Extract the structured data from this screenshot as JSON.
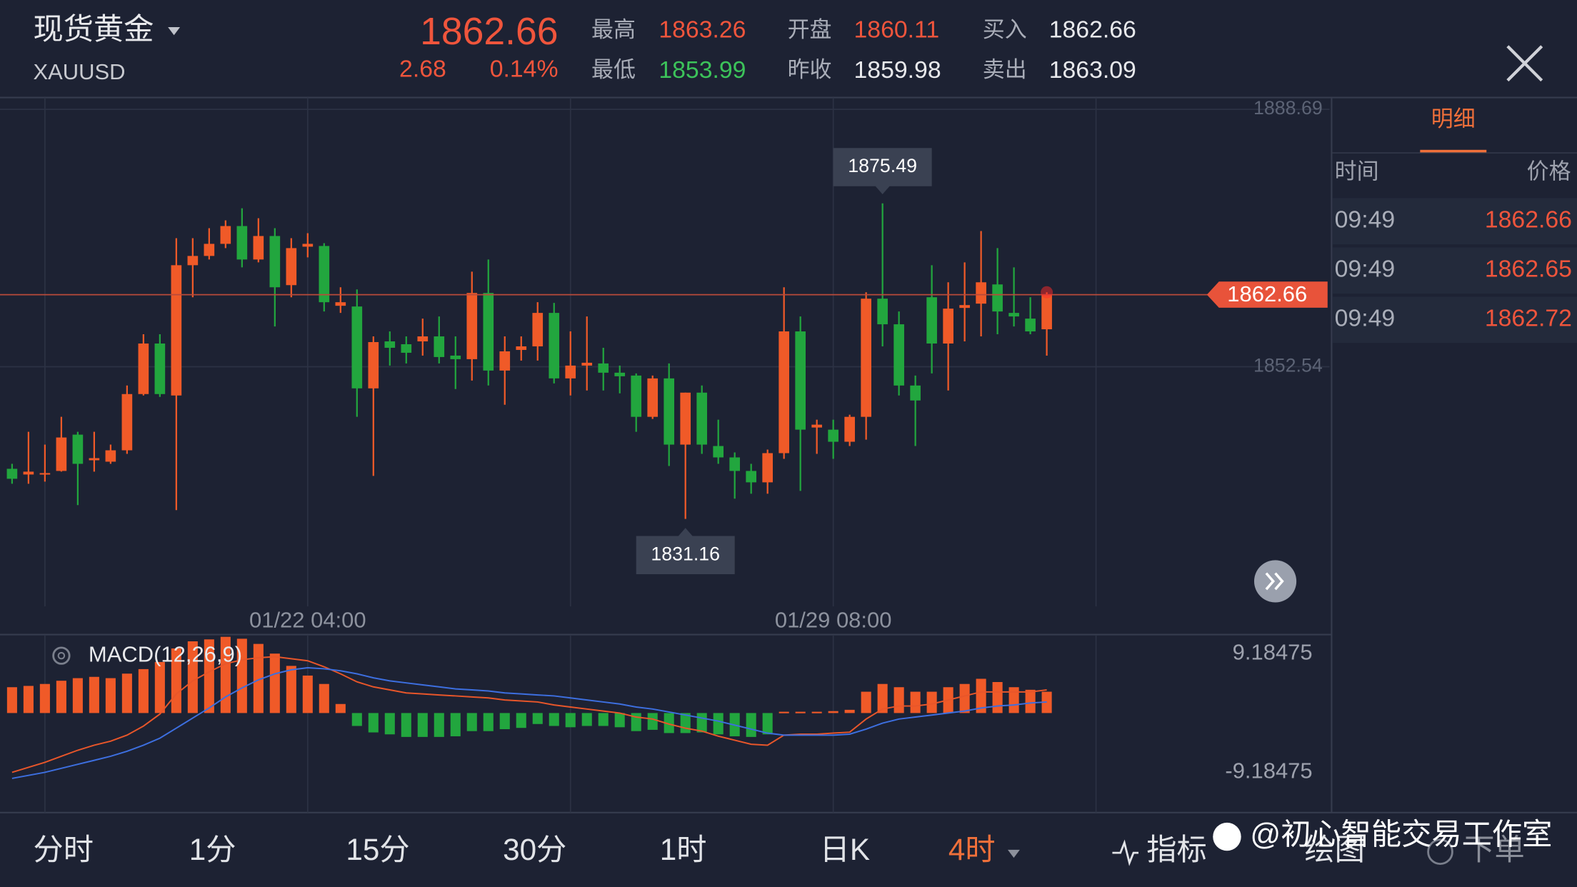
{
  "header": {
    "name": "现货黄金",
    "code": "XAUUSD",
    "price": 1862.66,
    "change": 2.68,
    "change_pct": "0.14%",
    "high_label": "最高",
    "high": 1863.26,
    "low_label": "最低",
    "low": 1853.99,
    "open_label": "开盘",
    "open": 1860.11,
    "prev_label": "昨收",
    "prev": 1859.98,
    "buy_label": "买入",
    "buy": 1862.66,
    "sell_label": "卖出",
    "sell": 1863.09
  },
  "detail": {
    "tab": "明细",
    "columns": [
      "时间",
      "价格"
    ],
    "rows": [
      [
        "09:49",
        1862.66
      ],
      [
        "09:49",
        1862.65
      ],
      [
        "09:49",
        1862.72
      ]
    ]
  },
  "chart_data": [
    {
      "type": "candlestick",
      "up_color": "#f05a28",
      "down_color": "#22a63e",
      "categories": [
        null,
        null,
        null,
        null,
        null,
        null,
        null,
        null,
        null,
        null,
        null,
        null,
        null,
        null,
        null,
        null,
        null,
        null,
        "01/22 04:00",
        null,
        null,
        null,
        null,
        null,
        null,
        null,
        null,
        null,
        null,
        null,
        null,
        null,
        null,
        null,
        null,
        null,
        null,
        null,
        null,
        null,
        null,
        null,
        null,
        null,
        null,
        null,
        null,
        null,
        null,
        null,
        "01/29 08:00",
        null,
        null,
        null,
        null,
        null,
        null,
        null,
        null,
        null,
        null,
        null,
        null,
        null
      ],
      "open": [
        1838.2,
        1837.4,
        1837.4,
        1837.9,
        1843.0,
        1839.4,
        1839.2,
        1840.8,
        1848.7,
        1855.8,
        1848.5,
        1866.8,
        1868.1,
        1869.8,
        1872.3,
        1867.6,
        1870.9,
        1864.0,
        1869.4,
        1869.5,
        1861.1,
        1861.0,
        1849.5,
        1856.1,
        1855.7,
        1856.1,
        1856.8,
        1854.1,
        1853.6,
        1862.9,
        1852.0,
        1854.9,
        1855.4,
        1860.1,
        1850.9,
        1852.7,
        1853.0,
        1851.7,
        1851.3,
        1845.5,
        1850.9,
        1841.6,
        1848.9,
        1841.4,
        1839.8,
        1837.9,
        1836.3,
        1840.4,
        1857.5,
        1844.0,
        1843.7,
        1842.0,
        1845.5,
        1862.1,
        1858.5,
        1849.9,
        1862.3,
        1855.8,
        1860.8,
        1861.4,
        1864.1,
        1860.1,
        1859.3,
        1857.8
      ],
      "high": [
        1838.9,
        1843.4,
        1841.6,
        1845.5,
        1843.4,
        1843.4,
        1841.6,
        1849.9,
        1857.1,
        1857.1,
        1870.6,
        1870.6,
        1872.0,
        1873.1,
        1874.8,
        1873.4,
        1872.0,
        1870.6,
        1871.3,
        1869.9,
        1863.7,
        1863.4,
        1856.8,
        1857.5,
        1856.8,
        1859.3,
        1859.6,
        1856.8,
        1865.9,
        1867.6,
        1856.8,
        1856.8,
        1861.6,
        1861.5,
        1857.5,
        1859.6,
        1855.2,
        1852.7,
        1851.6,
        1851.3,
        1853.0,
        1848.9,
        1849.9,
        1845.1,
        1840.5,
        1838.9,
        1840.9,
        1863.7,
        1859.6,
        1845.1,
        1845.1,
        1845.8,
        1863.0,
        1875.49,
        1860.3,
        1851.3,
        1866.8,
        1864.4,
        1867.2,
        1871.6,
        1869.2,
        1866.5,
        1862.3,
        1863.0
      ],
      "low": [
        1836.1,
        1836.1,
        1836.4,
        1837.8,
        1833.1,
        1837.8,
        1838.9,
        1840.3,
        1848.5,
        1848.3,
        1832.4,
        1862.3,
        1867.6,
        1869.2,
        1866.5,
        1867.2,
        1858.2,
        1862.3,
        1867.9,
        1860.3,
        1860.1,
        1845.5,
        1837.2,
        1852.7,
        1853.0,
        1854.1,
        1853.0,
        1849.4,
        1850.6,
        1849.9,
        1847.2,
        1853.4,
        1853.4,
        1850.2,
        1848.5,
        1849.2,
        1849.2,
        1848.8,
        1843.4,
        1845.2,
        1838.6,
        1831.16,
        1840.3,
        1838.9,
        1834.0,
        1834.7,
        1834.7,
        1839.6,
        1835.1,
        1840.3,
        1839.6,
        1841.4,
        1842.3,
        1855.4,
        1848.5,
        1841.4,
        1851.6,
        1849.2,
        1856.1,
        1856.8,
        1857.1,
        1858.2,
        1857.1,
        1854.1
      ],
      "close": [
        1836.8,
        1837.8,
        1837.6,
        1842.6,
        1838.9,
        1839.7,
        1840.8,
        1848.7,
        1855.8,
        1848.7,
        1866.8,
        1868.1,
        1869.8,
        1872.3,
        1867.6,
        1870.9,
        1863.7,
        1869.2,
        1869.8,
        1861.6,
        1861.6,
        1849.5,
        1856.0,
        1855.2,
        1854.5,
        1856.8,
        1853.9,
        1853.6,
        1862.9,
        1852.0,
        1854.7,
        1855.4,
        1860.1,
        1850.9,
        1852.7,
        1853.1,
        1851.7,
        1851.2,
        1845.5,
        1850.9,
        1841.6,
        1848.9,
        1841.6,
        1839.8,
        1837.9,
        1836.3,
        1840.4,
        1857.5,
        1843.7,
        1844.4,
        1842.0,
        1845.5,
        1862.1,
        1858.5,
        1849.9,
        1847.8,
        1855.8,
        1860.7,
        1861.2,
        1864.4,
        1860.3,
        1859.6,
        1857.5,
        1862.66
      ],
      "ylim": [
        1818.87,
        1890.35
      ],
      "yticks": [
        1888.69,
        1852.54
      ],
      "grid": true
    },
    {
      "type": "macd",
      "title": "MACD(12,26,9)",
      "up_color": "#f05a28",
      "down_color": "#22a63e",
      "histogram": [
        4.0,
        4.2,
        4.5,
        5.0,
        5.4,
        5.6,
        5.4,
        6.1,
        6.8,
        7.9,
        10.0,
        11.1,
        11.4,
        11.8,
        11.5,
        10.7,
        9.2,
        7.3,
        5.8,
        4.5,
        1.4,
        -2.0,
        -3.0,
        -3.3,
        -3.7,
        -3.7,
        -3.7,
        -3.6,
        -2.8,
        -2.8,
        -2.5,
        -2.3,
        -1.7,
        -2.0,
        -2.2,
        -2.0,
        -2.0,
        -2.2,
        -2.8,
        -2.6,
        -3.1,
        -3.1,
        -3.0,
        -3.3,
        -3.6,
        -3.7,
        -3.3,
        0.2,
        0.2,
        0.2,
        0.3,
        0.5,
        3.3,
        4.5,
        4.0,
        3.3,
        3.3,
        4.0,
        4.5,
        5.3,
        4.8,
        4.0,
        3.6,
        3.3
      ],
      "series": [
        {
          "color": "#e8562a",
          "values": [
            -9.18,
            -8.41,
            -7.63,
            -6.69,
            -5.76,
            -4.98,
            -4.36,
            -3.42,
            -2.02,
            -0.16,
            2.96,
            4.98,
            6.38,
            7.63,
            8.25,
            8.56,
            8.72,
            8.41,
            8.09,
            7.16,
            6.07,
            4.83,
            4.05,
            3.58,
            3.11,
            2.96,
            2.8,
            2.65,
            2.49,
            2.34,
            2.02,
            1.87,
            1.71,
            1.25,
            0.93,
            0.62,
            0.31,
            0,
            -0.62,
            -0.93,
            -1.71,
            -2.34,
            -2.8,
            -3.58,
            -4.2,
            -4.83,
            -4.98,
            -3.42,
            -3.27,
            -3.27,
            -3.11,
            -2.96,
            -0.93,
            0.62,
            1.09,
            1.09,
            1.4,
            2.02,
            2.65,
            3.27,
            3.27,
            3.27,
            3.27,
            3.58
          ]
        },
        {
          "color": "#3d6fe0",
          "values": [
            -10.12,
            -9.65,
            -9.18,
            -8.56,
            -7.94,
            -7.32,
            -6.69,
            -5.92,
            -4.98,
            -3.89,
            -2.34,
            -0.78,
            0.78,
            2.49,
            3.89,
            5.14,
            6.07,
            6.69,
            7.01,
            6.85,
            6.54,
            6.07,
            5.45,
            4.98,
            4.67,
            4.36,
            4.05,
            3.74,
            3.58,
            3.42,
            3.11,
            2.96,
            2.8,
            2.65,
            2.34,
            2.02,
            1.71,
            1.4,
            0.93,
            0.62,
            0.16,
            -0.31,
            -0.78,
            -1.25,
            -1.87,
            -2.49,
            -3.11,
            -3.42,
            -3.42,
            -3.42,
            -3.42,
            -3.27,
            -2.49,
            -1.56,
            -0.93,
            -0.62,
            -0.31,
            0,
            0.31,
            0.78,
            1.09,
            1.25,
            1.56,
            1.71
          ]
        }
      ],
      "ylim": [
        -15.41,
        11.99
      ],
      "yticks": [
        9.18475,
        -9.18475
      ]
    }
  ],
  "toolbar": {
    "items": [
      "分时",
      "1分",
      "15分",
      "30分",
      "1时",
      "日K",
      "4时"
    ],
    "indicator": "指标",
    "draw": "绘图",
    "order": "下单"
  },
  "watermark": "@初心智能交易工作室"
}
